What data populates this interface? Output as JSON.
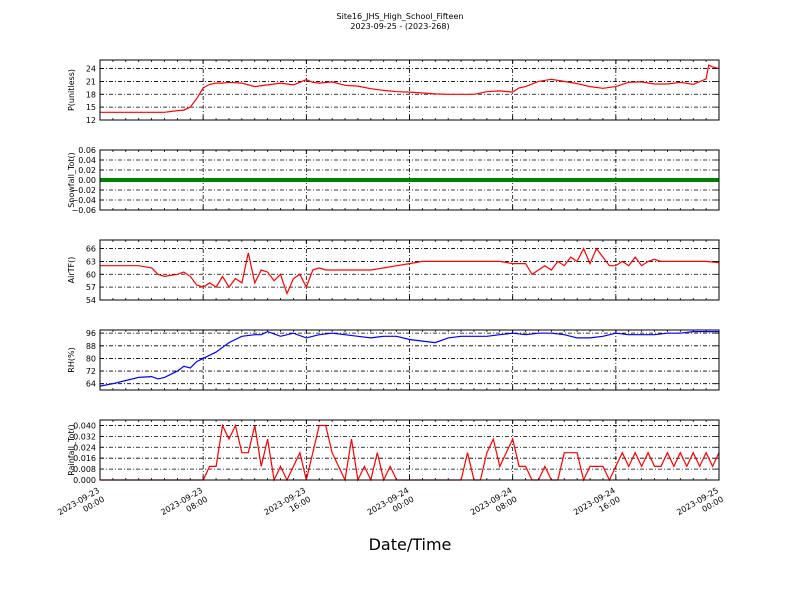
{
  "figure": {
    "title_line1": "Site16_JHS_High_School_Fifteen",
    "title_line2": "2023-09-25 - (2023-268)",
    "xlabel": "Date/Time",
    "x_tick_labels": [
      [
        "2023-09-23",
        "00:00"
      ],
      [
        "2023-09-23",
        "08:00"
      ],
      [
        "2023-09-23",
        "16:00"
      ],
      [
        "2023-09-24",
        "00:00"
      ],
      [
        "2023-09-24",
        "08:00"
      ],
      [
        "2023-09-24",
        "16:00"
      ],
      [
        "2023-09-25",
        "00:00"
      ]
    ]
  },
  "chart_data": [
    {
      "type": "line",
      "ylabel": "P(unitless)",
      "color": "#ff0000",
      "ylim": [
        12,
        26
      ],
      "yticks": [
        12,
        15,
        18,
        21,
        24
      ],
      "ytick_labels": [
        "12",
        "15",
        "18",
        "21",
        "24"
      ],
      "x_hours": [
        0,
        1,
        2,
        3,
        4,
        5,
        6,
        6.5,
        7,
        7.5,
        8,
        8.5,
        9,
        9.5,
        10,
        11,
        12,
        13,
        14,
        15,
        16,
        16.5,
        17,
        18,
        19,
        20,
        21,
        22,
        23,
        24,
        25,
        26,
        27,
        28,
        29,
        30,
        31,
        32,
        32.5,
        33,
        34,
        35,
        36,
        37,
        38,
        39,
        40,
        41,
        42,
        43,
        44,
        45,
        46,
        47,
        47.2,
        47.5,
        48
      ],
      "y": [
        13.8,
        13.8,
        13.8,
        13.8,
        13.8,
        13.8,
        14.2,
        14.3,
        15,
        17,
        19.5,
        20.3,
        20.6,
        20.6,
        20.8,
        20.6,
        19.8,
        20.2,
        20.6,
        20.2,
        21.4,
        20.8,
        20.6,
        20.9,
        20.1,
        19.9,
        19.3,
        18.9,
        18.6,
        18.5,
        18.3,
        18.1,
        18.0,
        18.0,
        18.0,
        18.6,
        18.8,
        18.5,
        19.5,
        19.8,
        21.0,
        21.5,
        21.0,
        20.5,
        19.8,
        19.4,
        19.8,
        20.8,
        20.9,
        20.4,
        20.4,
        20.8,
        20.3,
        21.6,
        24.8,
        24.4,
        24.0
      ]
    },
    {
      "type": "line",
      "ylabel": "Snowfall_Tot()",
      "color": "#008000",
      "ylim": [
        -0.06,
        0.06
      ],
      "yticks": [
        -0.06,
        -0.04,
        -0.02,
        0.0,
        0.02,
        0.04,
        0.06
      ],
      "ytick_labels": [
        "−0.06",
        "−0.04",
        "−0.02",
        "0.00",
        "0.02",
        "0.04",
        "0.06"
      ],
      "x_hours": [
        0,
        48
      ],
      "y": [
        0,
        0
      ]
    },
    {
      "type": "line",
      "ylabel": "AirTF()",
      "color": "#ff0000",
      "ylim": [
        54,
        68
      ],
      "yticks": [
        54,
        57,
        60,
        63,
        66
      ],
      "ytick_labels": [
        "54",
        "57",
        "60",
        "63",
        "66"
      ],
      "x_hours": [
        0,
        1,
        2,
        3,
        4,
        4.5,
        5,
        6,
        6.5,
        7,
        7.5,
        8,
        8.5,
        9,
        9.5,
        10,
        10.5,
        11,
        11.5,
        12,
        12.5,
        13,
        13.5,
        14,
        14.5,
        15,
        15.5,
        16,
        16.5,
        17,
        17.5,
        18,
        19,
        20,
        21,
        22,
        23,
        24,
        25,
        26,
        27,
        28,
        29,
        30,
        31,
        32,
        33,
        33.5,
        34,
        34.5,
        35,
        35.5,
        36,
        36.5,
        37,
        37.5,
        38,
        38.5,
        39,
        39.5,
        40,
        40.5,
        41,
        41.5,
        42,
        42.5,
        43,
        43.5,
        44,
        45,
        46,
        47,
        48
      ],
      "y": [
        62,
        62,
        62,
        62,
        61.5,
        60,
        59.5,
        60,
        60.5,
        59.5,
        57.5,
        57,
        58,
        57,
        59.5,
        57,
        59,
        58,
        65,
        58,
        61,
        60.5,
        58.5,
        60,
        55.5,
        59,
        60,
        57,
        61,
        61.5,
        61,
        61,
        61,
        61,
        61,
        61.5,
        62,
        62.5,
        63,
        63,
        63,
        63,
        63,
        63,
        63,
        62.5,
        62.5,
        60,
        61,
        62,
        61,
        63,
        62,
        64,
        63,
        66,
        62.5,
        66,
        64,
        62,
        62,
        63,
        62,
        64,
        62,
        63,
        63.5,
        63,
        63,
        63,
        63,
        63,
        62.7
      ]
    },
    {
      "type": "line",
      "ylabel": "RH(%)",
      "color": "#0000ff",
      "ylim": [
        60,
        98
      ],
      "yticks": [
        64,
        72,
        80,
        88,
        96
      ],
      "ytick_labels": [
        "64",
        "72",
        "80",
        "88",
        "96"
      ],
      "x_hours": [
        0,
        1,
        2,
        3,
        4,
        4.5,
        5,
        6,
        6.5,
        7,
        7.5,
        8,
        9,
        10,
        11,
        12,
        12.5,
        13,
        14,
        15,
        16,
        17,
        18,
        19,
        20,
        21,
        22,
        23,
        24,
        25,
        26,
        27,
        28,
        29,
        30,
        31,
        32,
        33,
        34,
        35,
        36,
        37,
        38,
        39,
        40,
        41,
        42,
        43,
        44,
        45,
        46,
        47,
        48
      ],
      "y": [
        62.5,
        64,
        66,
        68,
        68.5,
        67,
        68,
        72,
        75,
        74,
        78,
        80,
        84,
        90,
        94,
        95,
        95,
        97,
        94,
        96,
        93,
        95,
        96,
        95,
        94,
        93,
        94,
        94,
        92,
        91,
        90,
        93,
        94,
        94,
        94,
        95,
        96,
        95,
        96,
        96,
        95,
        93,
        93,
        94,
        96,
        95,
        95,
        95,
        96,
        96,
        97,
        97,
        97
      ]
    },
    {
      "type": "line",
      "ylabel": "Rainfall_Tot()",
      "color": "#ff0000",
      "ylim": [
        0,
        0.044
      ],
      "yticks": [
        0.0,
        0.008,
        0.016,
        0.024,
        0.032,
        0.04
      ],
      "ytick_labels": [
        "0.000",
        "0.008",
        "0.016",
        "0.024",
        "0.032",
        "0.040"
      ],
      "x_hours": [
        0,
        4,
        8,
        8.5,
        9,
        9.5,
        10,
        10.5,
        11,
        11.5,
        12,
        12.5,
        13,
        13.5,
        14,
        14.5,
        15,
        15.5,
        16,
        16.5,
        17,
        17.5,
        18,
        18.5,
        19,
        19.5,
        20,
        20.5,
        21,
        21.5,
        22,
        22.5,
        23,
        24,
        26,
        27,
        28,
        28.5,
        29,
        29.5,
        30,
        30.5,
        31,
        31.5,
        32,
        32.5,
        33,
        33.5,
        34,
        34.5,
        35,
        35.5,
        36,
        36.5,
        37,
        37.5,
        38,
        38.5,
        39,
        39.5,
        40,
        40.5,
        41,
        41.5,
        42,
        42.5,
        43,
        43.5,
        44,
        44.5,
        45,
        45.5,
        46,
        46.5,
        47,
        47.5,
        48
      ],
      "y": [
        0,
        0,
        0,
        0.01,
        0.01,
        0.04,
        0.03,
        0.04,
        0.02,
        0.02,
        0.04,
        0.01,
        0.03,
        0,
        0.01,
        0,
        0.01,
        0.02,
        0,
        0.02,
        0.04,
        0.04,
        0.02,
        0.01,
        0,
        0.03,
        0,
        0.01,
        0,
        0.02,
        0,
        0.01,
        0,
        0,
        0,
        0,
        0,
        0.02,
        0,
        0,
        0.02,
        0.03,
        0.01,
        0.02,
        0.03,
        0.01,
        0.01,
        0,
        0,
        0.01,
        0,
        0,
        0.02,
        0.02,
        0.02,
        0,
        0.01,
        0.01,
        0.01,
        0,
        0.01,
        0.02,
        0.01,
        0.02,
        0.01,
        0.02,
        0.01,
        0.01,
        0.02,
        0.01,
        0.02,
        0.01,
        0.02,
        0.01,
        0.02,
        0.01,
        0.02
      ]
    }
  ]
}
